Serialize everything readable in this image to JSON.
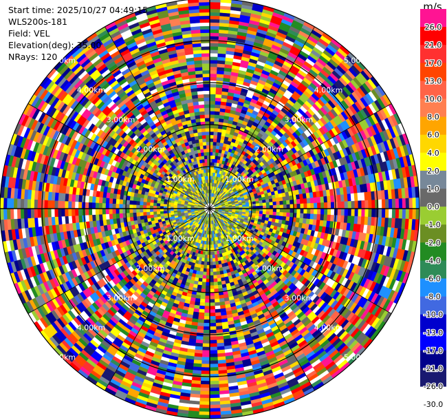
{
  "header": {
    "start_time": "Start time: 2025/10/27 04:49:15",
    "instrument": "WLS200s-181",
    "field": "Field: VEL",
    "elevation": "Elevation(deg): 35.00",
    "nrays": "NRays: 120"
  },
  "ppi": {
    "nrays": 120,
    "range_labels": [
      "1.00km",
      "2.00km",
      "3.00km",
      "4.00km",
      "5.00km"
    ]
  },
  "colorbar": {
    "unit": "m/s",
    "levels": [
      {
        "label": "26.0",
        "color": "#ff1493"
      },
      {
        "label": "21.0",
        "color": "#ff0000"
      },
      {
        "label": "17.0",
        "color": "#ff3030"
      },
      {
        "label": "13.0",
        "color": "#ff4500"
      },
      {
        "label": "10.0",
        "color": "#ff6347"
      },
      {
        "label": "8.0",
        "color": "#ff7f50"
      },
      {
        "label": "6.0",
        "color": "#ffa500"
      },
      {
        "label": "4.0",
        "color": "#ffd700"
      },
      {
        "label": "2.0",
        "color": "#ffff00"
      },
      {
        "label": "1.0",
        "color": "#778899"
      },
      {
        "label": "0.0",
        "color": "#696969"
      },
      {
        "label": "-1.0",
        "color": "#9acd32"
      },
      {
        "label": "-2.0",
        "color": "#6b8e23"
      },
      {
        "label": "-4.0",
        "color": "#228b22"
      },
      {
        "label": "-6.0",
        "color": "#2e8b57"
      },
      {
        "label": "-8.0",
        "color": "#1e90ff"
      },
      {
        "label": "-10.0",
        "color": "#4169e1"
      },
      {
        "label": "-13.0",
        "color": "#0000cd"
      },
      {
        "label": "-17.0",
        "color": "#0000ff"
      },
      {
        "label": "-21.0",
        "color": "#00008b"
      },
      {
        "label": "-26.0",
        "color": "#191970"
      },
      {
        "label": "-30.0",
        "color": "#191970"
      }
    ]
  }
}
